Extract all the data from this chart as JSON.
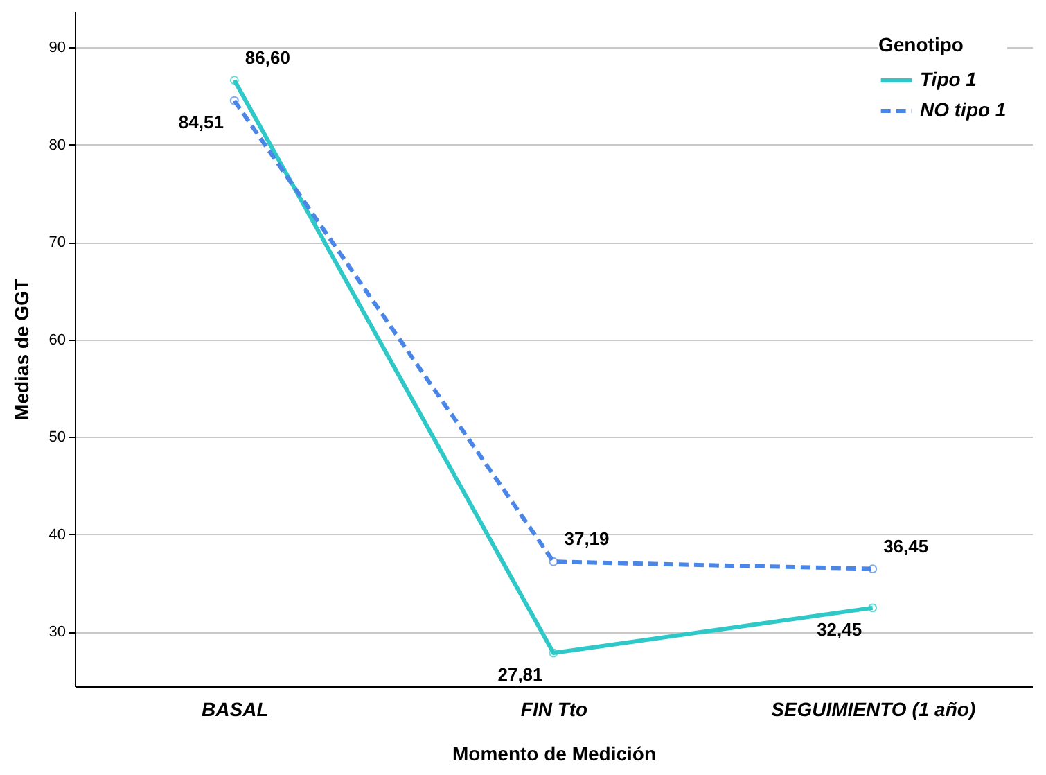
{
  "chart_data": {
    "type": "line",
    "xlabel": "Momento de Medición",
    "ylabel": "Medias de GGT",
    "legend_title": "Genotipo",
    "categories": [
      "BASAL",
      "FIN Tto",
      "SEGUIMIENTO (1 año)"
    ],
    "series": [
      {
        "name": "Tipo 1",
        "color": "#2ec8c8",
        "line_style": "solid",
        "values": [
          86.6,
          27.81,
          32.45
        ],
        "value_labels": [
          "86,60",
          "27,81",
          "32,45"
        ]
      },
      {
        "name": "NO tipo 1",
        "color": "#4a86e8",
        "line_style": "dashed",
        "values": [
          84.51,
          37.19,
          36.45
        ],
        "value_labels": [
          "84,51",
          "37,19",
          "36,45"
        ]
      }
    ],
    "ylim": [
      24.4,
      93.7
    ],
    "yticks": [
      30,
      40,
      50,
      60,
      70,
      80,
      90
    ],
    "grid": "y",
    "legend": "top right",
    "marker": "circle"
  }
}
